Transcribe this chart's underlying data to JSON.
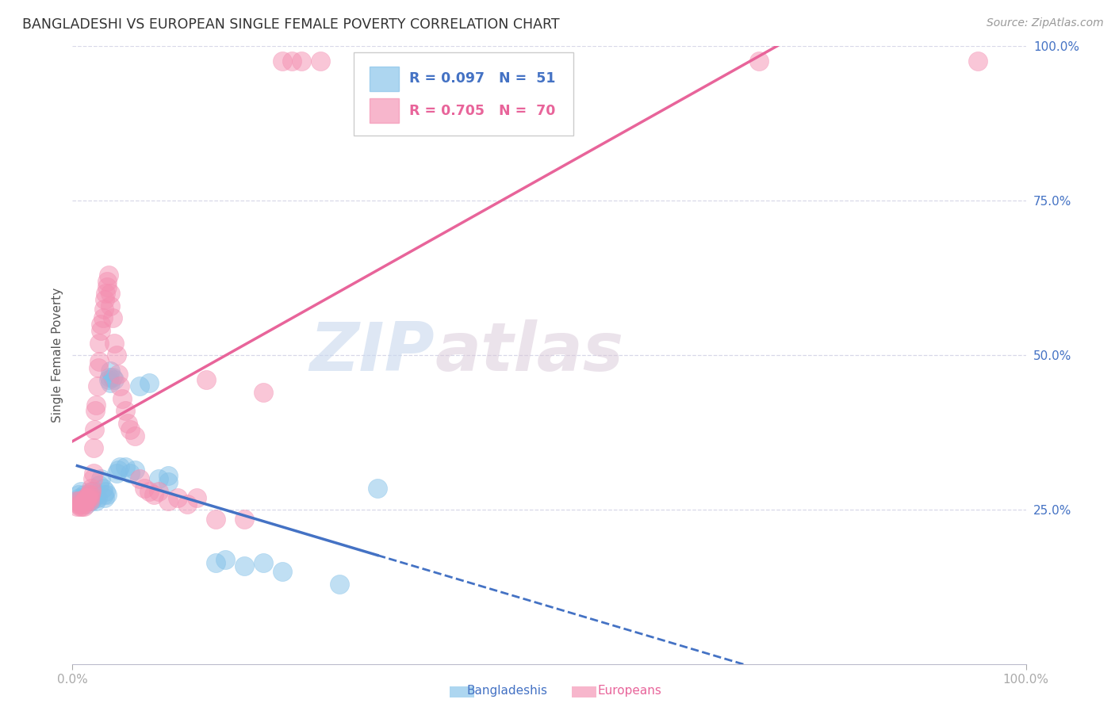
{
  "title": "BANGLADESHI VS EUROPEAN SINGLE FEMALE POVERTY CORRELATION CHART",
  "source": "Source: ZipAtlas.com",
  "ylabel": "Single Female Poverty",
  "xlim": [
    0,
    1
  ],
  "ylim": [
    0,
    1
  ],
  "y_tick_positions": [
    1.0,
    0.75,
    0.5,
    0.25
  ],
  "y_tick_labels": [
    "100.0%",
    "75.0%",
    "50.0%",
    "25.0%"
  ],
  "bangladeshi_color": "#82c0e8",
  "european_color": "#f48fb1",
  "bangladeshi_label": "Bangladeshis",
  "european_label": "Europeans",
  "legend_r_bangladeshi": "R = 0.097",
  "legend_n_bangladeshi": "N = 51",
  "legend_r_european": "R = 0.705",
  "legend_n_european": "N = 70",
  "bangladeshi_line_color": "#4472c4",
  "european_line_color": "#e8649a",
  "background_color": "#ffffff",
  "grid_color": "#d8d8e8",
  "bangladeshi_points": [
    [
      0.005,
      0.265
    ],
    [
      0.006,
      0.275
    ],
    [
      0.007,
      0.27
    ],
    [
      0.009,
      0.28
    ],
    [
      0.01,
      0.27
    ],
    [
      0.012,
      0.275
    ],
    [
      0.014,
      0.265
    ],
    [
      0.015,
      0.27
    ],
    [
      0.015,
      0.26
    ],
    [
      0.016,
      0.275
    ],
    [
      0.018,
      0.265
    ],
    [
      0.019,
      0.27
    ],
    [
      0.02,
      0.28
    ],
    [
      0.02,
      0.265
    ],
    [
      0.022,
      0.27
    ],
    [
      0.022,
      0.28
    ],
    [
      0.023,
      0.275
    ],
    [
      0.025,
      0.265
    ],
    [
      0.025,
      0.275
    ],
    [
      0.026,
      0.27
    ],
    [
      0.028,
      0.29
    ],
    [
      0.03,
      0.3
    ],
    [
      0.032,
      0.285
    ],
    [
      0.033,
      0.275
    ],
    [
      0.034,
      0.27
    ],
    [
      0.035,
      0.28
    ],
    [
      0.036,
      0.275
    ],
    [
      0.038,
      0.46
    ],
    [
      0.039,
      0.465
    ],
    [
      0.04,
      0.455
    ],
    [
      0.04,
      0.475
    ],
    [
      0.042,
      0.465
    ],
    [
      0.044,
      0.46
    ],
    [
      0.046,
      0.31
    ],
    [
      0.048,
      0.315
    ],
    [
      0.05,
      0.32
    ],
    [
      0.055,
      0.32
    ],
    [
      0.06,
      0.31
    ],
    [
      0.065,
      0.315
    ],
    [
      0.07,
      0.45
    ],
    [
      0.08,
      0.455
    ],
    [
      0.09,
      0.3
    ],
    [
      0.1,
      0.295
    ],
    [
      0.1,
      0.305
    ],
    [
      0.15,
      0.165
    ],
    [
      0.16,
      0.17
    ],
    [
      0.18,
      0.16
    ],
    [
      0.2,
      0.165
    ],
    [
      0.22,
      0.15
    ],
    [
      0.28,
      0.13
    ],
    [
      0.32,
      0.285
    ]
  ],
  "european_points": [
    [
      0.004,
      0.265
    ],
    [
      0.005,
      0.255
    ],
    [
      0.006,
      0.26
    ],
    [
      0.007,
      0.265
    ],
    [
      0.008,
      0.255
    ],
    [
      0.009,
      0.26
    ],
    [
      0.01,
      0.255
    ],
    [
      0.011,
      0.26
    ],
    [
      0.012,
      0.255
    ],
    [
      0.013,
      0.265
    ],
    [
      0.014,
      0.27
    ],
    [
      0.015,
      0.27
    ],
    [
      0.015,
      0.265
    ],
    [
      0.016,
      0.27
    ],
    [
      0.017,
      0.275
    ],
    [
      0.018,
      0.27
    ],
    [
      0.018,
      0.265
    ],
    [
      0.019,
      0.275
    ],
    [
      0.02,
      0.28
    ],
    [
      0.02,
      0.285
    ],
    [
      0.021,
      0.3
    ],
    [
      0.022,
      0.31
    ],
    [
      0.022,
      0.35
    ],
    [
      0.023,
      0.38
    ],
    [
      0.024,
      0.41
    ],
    [
      0.025,
      0.42
    ],
    [
      0.026,
      0.45
    ],
    [
      0.027,
      0.48
    ],
    [
      0.028,
      0.49
    ],
    [
      0.028,
      0.52
    ],
    [
      0.03,
      0.54
    ],
    [
      0.03,
      0.55
    ],
    [
      0.032,
      0.56
    ],
    [
      0.033,
      0.575
    ],
    [
      0.034,
      0.59
    ],
    [
      0.035,
      0.6
    ],
    [
      0.036,
      0.61
    ],
    [
      0.036,
      0.62
    ],
    [
      0.038,
      0.63
    ],
    [
      0.04,
      0.6
    ],
    [
      0.04,
      0.58
    ],
    [
      0.042,
      0.56
    ],
    [
      0.044,
      0.52
    ],
    [
      0.046,
      0.5
    ],
    [
      0.048,
      0.47
    ],
    [
      0.05,
      0.45
    ],
    [
      0.052,
      0.43
    ],
    [
      0.055,
      0.41
    ],
    [
      0.058,
      0.39
    ],
    [
      0.06,
      0.38
    ],
    [
      0.065,
      0.37
    ],
    [
      0.07,
      0.3
    ],
    [
      0.075,
      0.285
    ],
    [
      0.08,
      0.28
    ],
    [
      0.085,
      0.275
    ],
    [
      0.09,
      0.28
    ],
    [
      0.1,
      0.265
    ],
    [
      0.11,
      0.27
    ],
    [
      0.12,
      0.26
    ],
    [
      0.13,
      0.27
    ],
    [
      0.14,
      0.46
    ],
    [
      0.15,
      0.235
    ],
    [
      0.18,
      0.235
    ],
    [
      0.2,
      0.44
    ],
    [
      0.22,
      0.975
    ],
    [
      0.23,
      0.975
    ],
    [
      0.24,
      0.975
    ],
    [
      0.26,
      0.975
    ],
    [
      0.72,
      0.975
    ],
    [
      0.95,
      0.975
    ]
  ]
}
